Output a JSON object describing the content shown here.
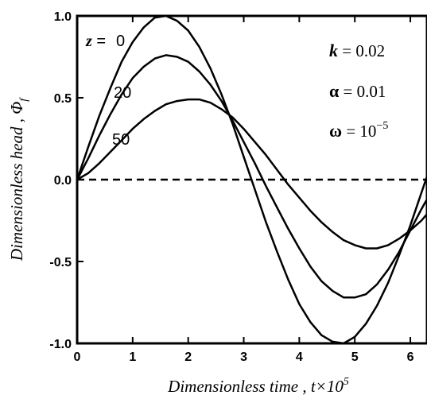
{
  "chart_data": {
    "type": "line",
    "xlabel": "Dimensionless  time , t×10",
    "xlabel_exp": "5",
    "ylabel": "Dimensionless head , Φ",
    "ylabel_sub": "f",
    "xlim": [
      0,
      6.3
    ],
    "ylim": [
      -1.0,
      1.0
    ],
    "x_ticks": [
      0,
      1,
      2,
      3,
      4,
      5,
      6
    ],
    "y_ticks": [
      1.0,
      0.5,
      0.0,
      -0.5,
      -1.0
    ],
    "y_tick_labels": [
      "1.0",
      "0.5",
      "0.0",
      "-0.5",
      "-1.0"
    ],
    "grid": false,
    "reference_line": {
      "y": 0.0,
      "style": "dashed"
    },
    "series": [
      {
        "name": "z = 0",
        "label_text": "0",
        "x": [
          0,
          0.2,
          0.4,
          0.6,
          0.8,
          1.0,
          1.2,
          1.4,
          1.6,
          1.8,
          2.0,
          2.2,
          2.4,
          2.6,
          2.8,
          3.0,
          3.2,
          3.4,
          3.6,
          3.8,
          4.0,
          4.2,
          4.4,
          4.6,
          4.8,
          5.0,
          5.2,
          5.4,
          5.6,
          5.8,
          6.0,
          6.2,
          6.3
        ],
        "y": [
          0.0,
          0.2,
          0.39,
          0.56,
          0.72,
          0.84,
          0.93,
          0.99,
          1.0,
          0.97,
          0.91,
          0.81,
          0.68,
          0.52,
          0.34,
          0.14,
          -0.06,
          -0.26,
          -0.44,
          -0.61,
          -0.76,
          -0.87,
          -0.95,
          -0.99,
          -1.0,
          -0.96,
          -0.88,
          -0.77,
          -0.63,
          -0.46,
          -0.28,
          -0.08,
          0.02
        ]
      },
      {
        "name": "z = 20",
        "label_text": "20",
        "x": [
          0,
          0.2,
          0.4,
          0.6,
          0.8,
          1.0,
          1.2,
          1.4,
          1.6,
          1.8,
          2.0,
          2.2,
          2.4,
          2.6,
          2.8,
          3.0,
          3.2,
          3.4,
          3.6,
          3.8,
          4.0,
          4.2,
          4.4,
          4.6,
          4.8,
          5.0,
          5.2,
          5.4,
          5.6,
          5.8,
          6.0,
          6.2,
          6.3
        ],
        "y": [
          0.0,
          0.13,
          0.27,
          0.4,
          0.52,
          0.62,
          0.69,
          0.74,
          0.76,
          0.75,
          0.72,
          0.66,
          0.58,
          0.48,
          0.36,
          0.23,
          0.1,
          -0.04,
          -0.17,
          -0.3,
          -0.42,
          -0.53,
          -0.62,
          -0.68,
          -0.72,
          -0.72,
          -0.7,
          -0.64,
          -0.55,
          -0.44,
          -0.31,
          -0.18,
          -0.12
        ]
      },
      {
        "name": "z = 50",
        "label_text": "50",
        "x": [
          0,
          0.2,
          0.4,
          0.6,
          0.8,
          1.0,
          1.2,
          1.4,
          1.6,
          1.8,
          2.0,
          2.2,
          2.4,
          2.6,
          2.8,
          3.0,
          3.2,
          3.4,
          3.6,
          3.8,
          4.0,
          4.2,
          4.4,
          4.6,
          4.8,
          5.0,
          5.2,
          5.4,
          5.6,
          5.8,
          6.0,
          6.2,
          6.3
        ],
        "y": [
          0.0,
          0.04,
          0.1,
          0.17,
          0.24,
          0.31,
          0.37,
          0.42,
          0.46,
          0.48,
          0.49,
          0.49,
          0.47,
          0.43,
          0.38,
          0.31,
          0.23,
          0.15,
          0.06,
          -0.03,
          -0.11,
          -0.19,
          -0.26,
          -0.32,
          -0.37,
          -0.4,
          -0.42,
          -0.42,
          -0.4,
          -0.36,
          -0.31,
          -0.25,
          -0.21
        ]
      }
    ],
    "z_prefix": "z",
    "z_eq": " =",
    "annotations": {
      "k_symbol": "k",
      "k_value": " = 0.02",
      "alpha_symbol": "α",
      "alpha_value": " = 0.01",
      "omega_symbol": "ω",
      "omega_value": " = 10",
      "omega_exp": "−5"
    }
  }
}
